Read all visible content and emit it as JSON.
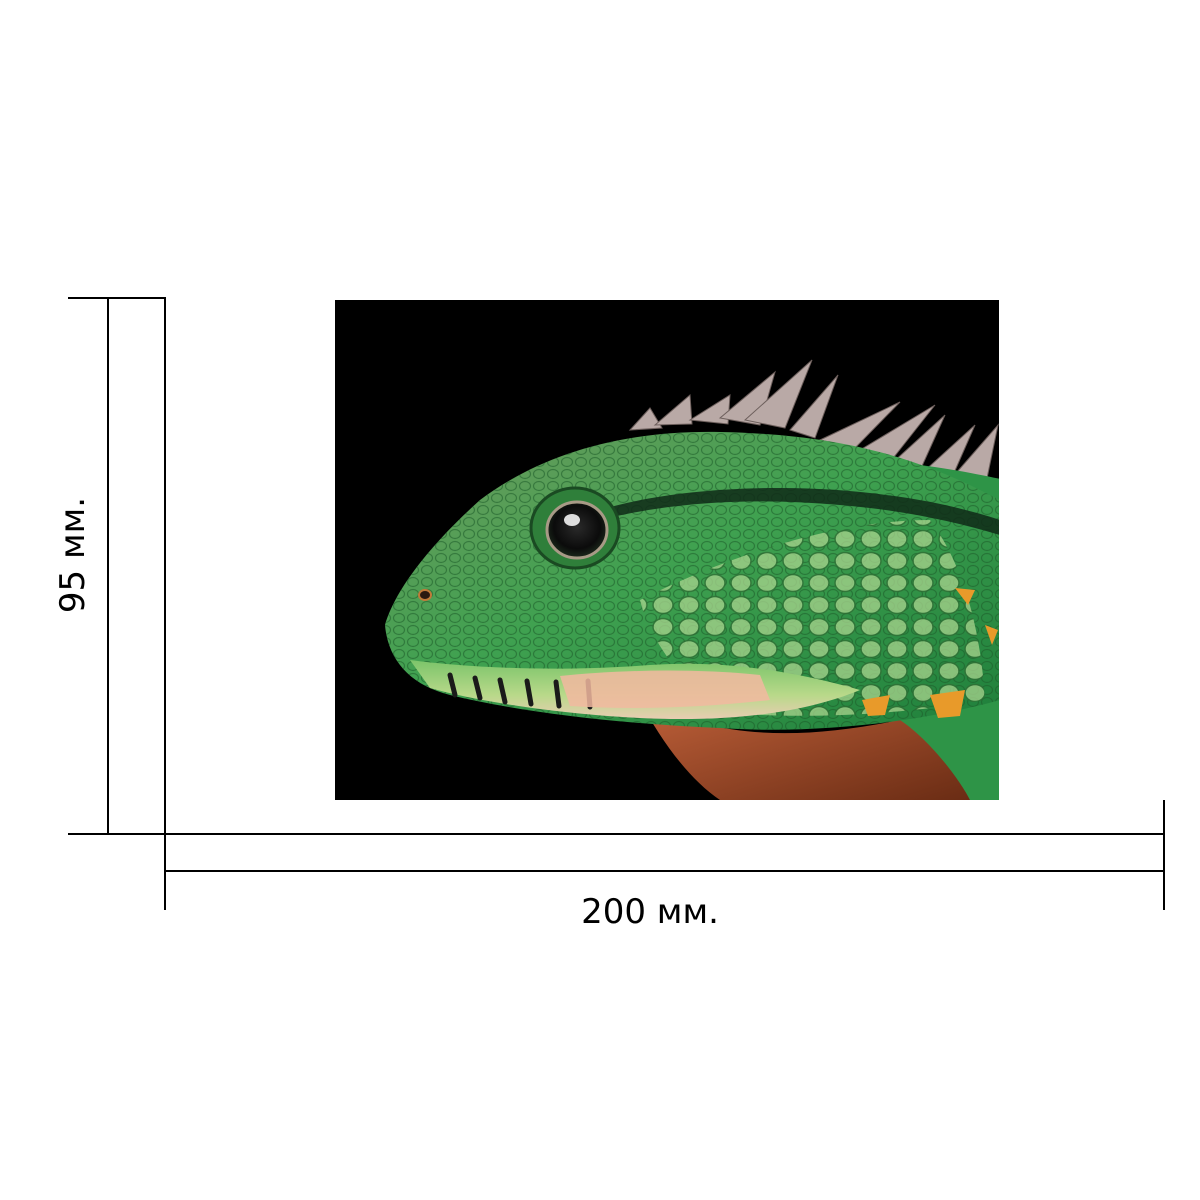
{
  "dimensions": {
    "height_label": "95 мм.",
    "width_label": "200 мм."
  },
  "photo": {
    "subject": "lizard-head",
    "background_color": "#000000",
    "skin_colors": [
      "#2f9a4a",
      "#5fb85a",
      "#9ccf7a",
      "#e9c9b0",
      "#f2a07a",
      "#a64a22",
      "#e89a2a"
    ]
  },
  "colors": {
    "line": "#000000",
    "page": "#ffffff"
  }
}
